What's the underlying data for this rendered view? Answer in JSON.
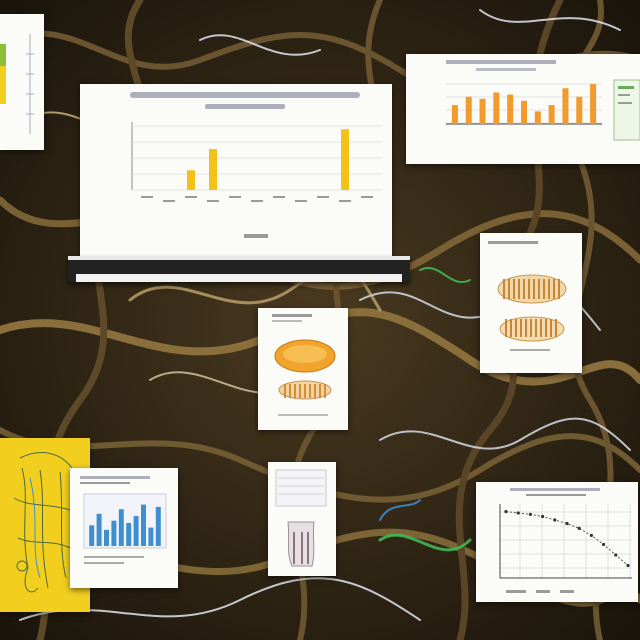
{
  "scene": {
    "background_palette": [
      "#2b2214",
      "#5a4626",
      "#8a6f3c",
      "#b9a06a",
      "#d7d9e6"
    ],
    "accent_orange": "#f2a32b",
    "accent_yellow": "#f2cf1f",
    "accent_blue": "#3f8fd0",
    "accent_green": "#3fbf5a"
  },
  "cards": {
    "main_bar_chart": {
      "type": "bar",
      "values_relative": [
        0,
        0,
        0.3,
        0.62,
        0,
        0,
        0,
        0,
        0,
        0.92,
        0
      ],
      "bar_color": "#f2c21b"
    },
    "top_right_bar_chart": {
      "type": "bar",
      "values_relative": [
        0.45,
        0.65,
        0.6,
        0.75,
        0.7,
        0.55,
        0.3,
        0.45,
        0.85,
        0.65,
        0.95
      ],
      "bar_color": "#f29a2b"
    },
    "bottom_left_bar_chart": {
      "type": "bar",
      "values_relative": [
        0.45,
        0.7,
        0.35,
        0.55,
        0.8,
        0.5,
        0.65,
        0.9,
        0.4,
        0.85
      ],
      "bar_color": "#3f8fd0"
    },
    "bottom_right_line_chart": {
      "type": "line",
      "points_relative": [
        0.92,
        0.9,
        0.88,
        0.85,
        0.8,
        0.75,
        0.68,
        0.58,
        0.45,
        0.3,
        0.15
      ]
    },
    "icons": {
      "specimen_card_icon": "orange-shell-icon",
      "right_specimen_icon": "gill-specimen-icon",
      "figure_card_icon": "figure-sketch-icon",
      "yellow_poster_icon": "anatomy-sketch-icon"
    }
  }
}
